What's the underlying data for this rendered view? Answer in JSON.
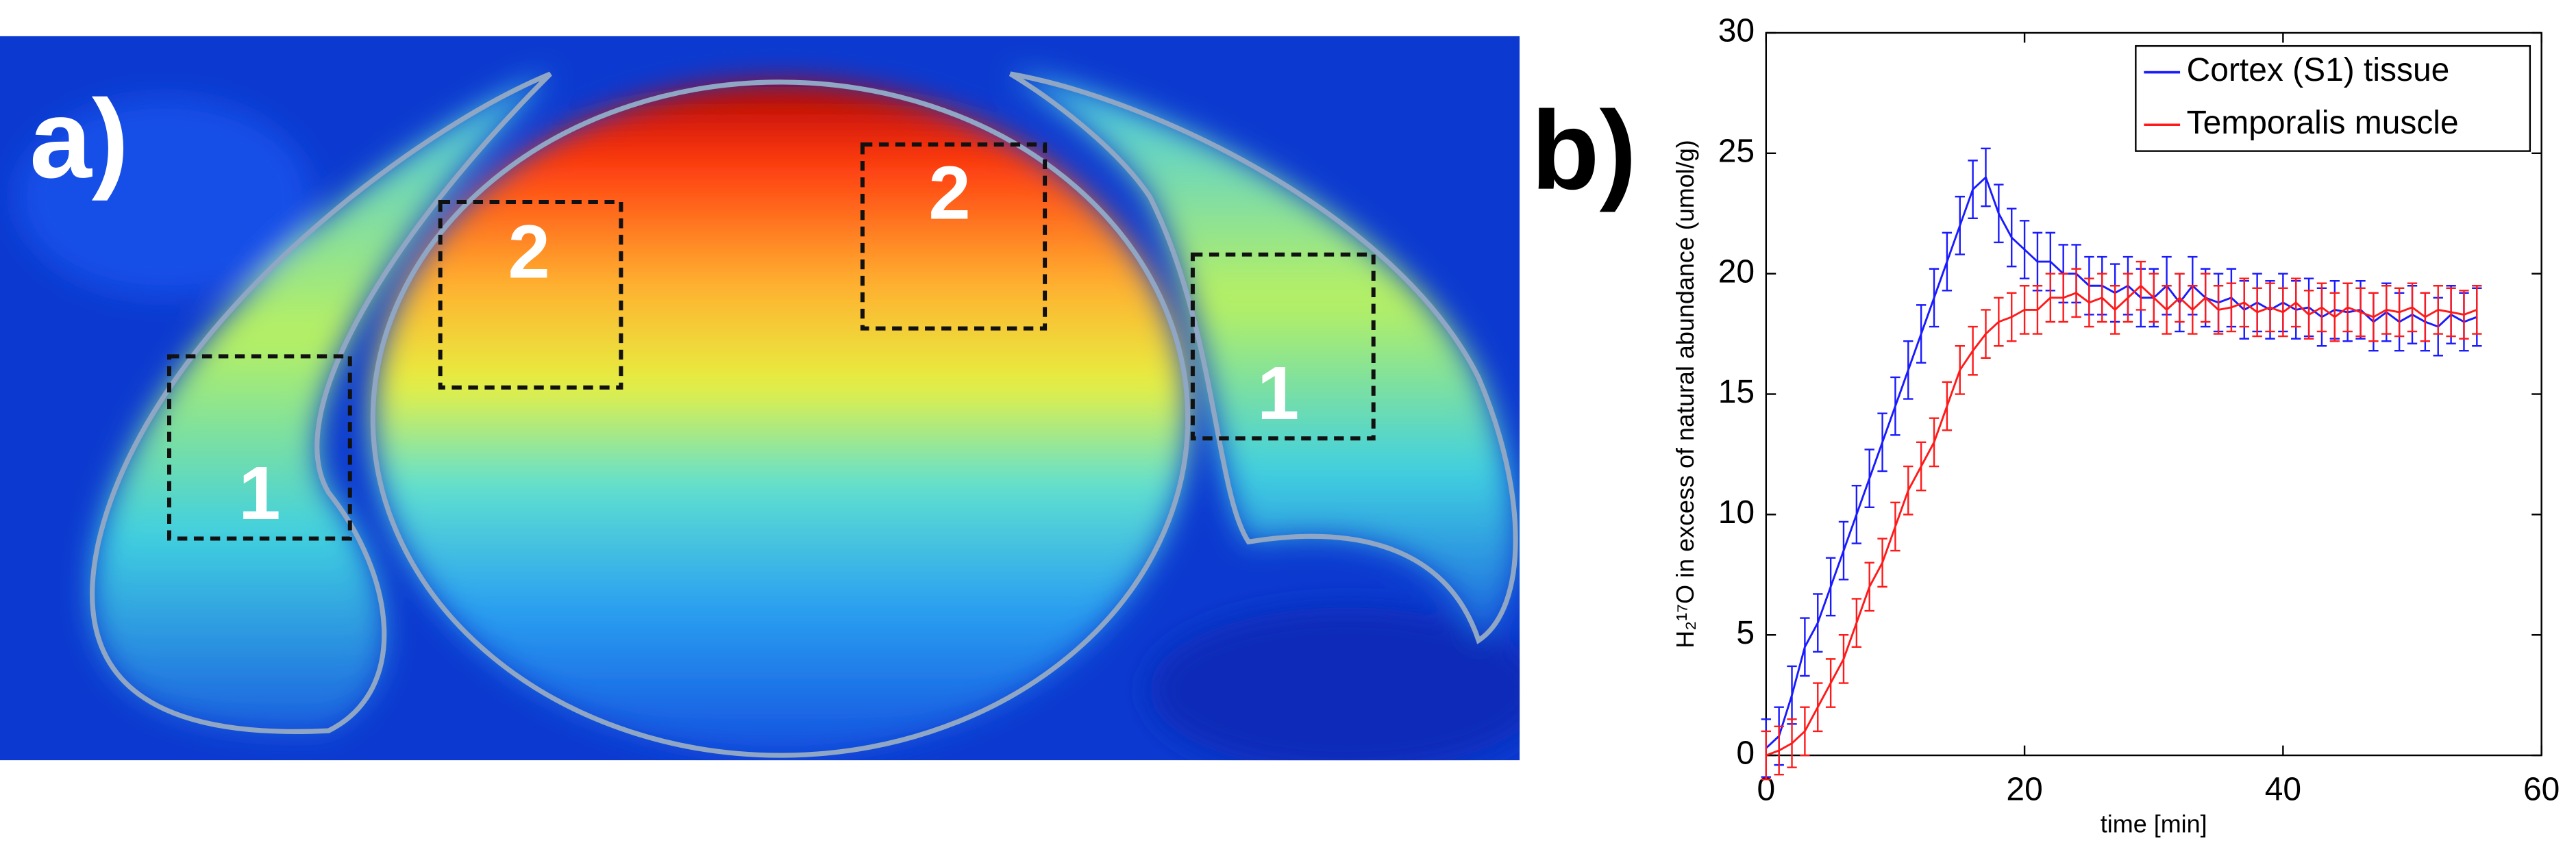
{
  "panel_a": {
    "label": "a)",
    "roi_labels": [
      "1",
      "2",
      "2",
      "1"
    ]
  },
  "chart_data": {
    "type": "errorbar-line",
    "panel_label": "b)",
    "xlabel": "time [min]",
    "ylabel": "H₂¹⁷O in excess of natural abundance (umol/g)",
    "x": [
      0,
      1,
      2,
      3,
      4,
      5,
      6,
      7,
      8,
      9,
      10,
      11,
      12,
      13,
      14,
      15,
      16,
      17,
      18,
      19,
      20,
      21,
      22,
      23,
      24,
      25,
      26,
      27,
      28,
      29,
      30,
      31,
      32,
      33,
      34,
      35,
      36,
      37,
      38,
      39,
      40,
      41,
      42,
      43,
      44,
      45,
      46,
      47,
      48,
      49,
      50,
      51,
      52,
      53,
      54,
      55
    ],
    "series": [
      {
        "name": "Cortex (S1) tissue",
        "color": "#1a1aff",
        "error": 1.2,
        "values": [
          0.3,
          0.8,
          2.5,
          4.5,
          5.5,
          7,
          8.5,
          10,
          11.5,
          13,
          14.5,
          16,
          17.5,
          19,
          20.5,
          22,
          23.5,
          24,
          22.5,
          21.5,
          21,
          20.5,
          20.5,
          20,
          20,
          19.5,
          19.5,
          19.2,
          19.5,
          19,
          19,
          19.5,
          18.8,
          19.5,
          19,
          18.8,
          19,
          18.5,
          18.8,
          18.5,
          18.8,
          18.5,
          18.6,
          18.2,
          18.5,
          18.4,
          18.5,
          18,
          18.4,
          18,
          18.3,
          18,
          17.8,
          18.3,
          18,
          18.2
        ]
      },
      {
        "name": "Temporalis muscle",
        "color": "#ff1a1a",
        "error": 1.0,
        "values": [
          0,
          0.2,
          0.5,
          1,
          2,
          3,
          4,
          5.5,
          7,
          8,
          9.5,
          11,
          12,
          13,
          14.5,
          16,
          16.8,
          17.5,
          18,
          18.2,
          18.5,
          18.5,
          19,
          19,
          19.2,
          18.8,
          19,
          18.5,
          19,
          19.5,
          19,
          18.5,
          19,
          18.5,
          19,
          18.5,
          18.6,
          18.8,
          18.4,
          18.6,
          18.4,
          18.8,
          18.3,
          18.6,
          18.2,
          18.6,
          18.4,
          18.2,
          18.5,
          18.4,
          18.6,
          18.2,
          18.5,
          18.4,
          18.3,
          18.5
        ]
      }
    ],
    "xlim": [
      0,
      60
    ],
    "xticks": [
      0,
      20,
      40,
      60
    ],
    "ylim": [
      0,
      30
    ],
    "yticks": [
      0,
      5,
      10,
      15,
      20,
      25,
      30
    ],
    "legend": "upper-right",
    "grid": false
  }
}
